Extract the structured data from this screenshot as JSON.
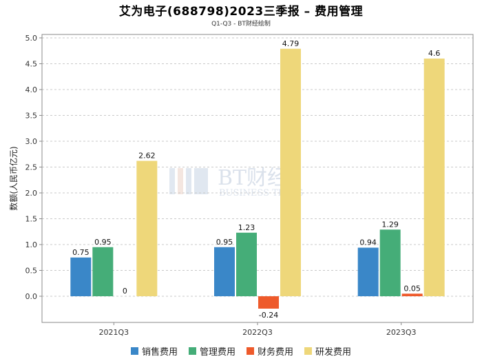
{
  "chart_data": {
    "type": "bar",
    "title": "艾为电子(688798)2023三季报 – 费用管理",
    "subtitle": "Q1-Q3 - BT财经绘制",
    "xlabel": "",
    "ylabel": "数额(人民币亿元)",
    "ylim": [
      -0.5,
      5.0
    ],
    "yticks": [
      "0.0",
      "0.5",
      "1.0",
      "1.5",
      "2.0",
      "2.5",
      "3.0",
      "3.5",
      "4.0",
      "4.5",
      "5.0"
    ],
    "grid": true,
    "legend_position": "bottom",
    "categories": [
      "2021Q3",
      "2022Q3",
      "2023Q3"
    ],
    "series": [
      {
        "name": "销售费用",
        "color": "#3a87c8",
        "values": [
          0.75,
          0.95,
          0.94
        ],
        "labels": [
          "0.75",
          "0.95",
          "0.94"
        ]
      },
      {
        "name": "管理费用",
        "color": "#45ad78",
        "values": [
          0.95,
          1.23,
          1.29
        ],
        "labels": [
          "0.95",
          "1.23",
          "1.29"
        ]
      },
      {
        "name": "财务费用",
        "color": "#ee5a2b",
        "values": [
          0,
          -0.24,
          0.05
        ],
        "labels": [
          "0",
          "-0.24",
          "0.05"
        ]
      },
      {
        "name": "研发费用",
        "color": "#eed77a",
        "values": [
          2.62,
          4.79,
          4.6
        ],
        "labels": [
          "2.62",
          "4.79",
          "4.6"
        ]
      }
    ],
    "watermark": {
      "cn": "BT财经",
      "en": "BUSINESS TIMES"
    }
  }
}
